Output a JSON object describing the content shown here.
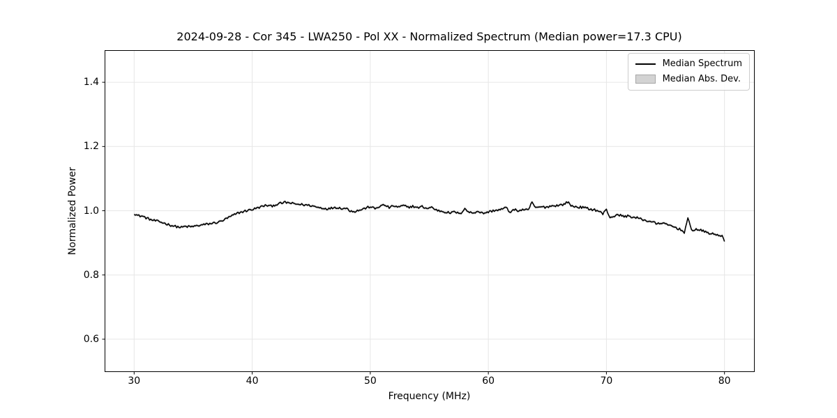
{
  "figure": {
    "title": "2024-09-28 - Cor 345 - LWA250 - Pol XX - Normalized Spectrum (Median power=17.3 CPU)",
    "xlabel": "Frequency (MHz)",
    "ylabel": "Normalized Power"
  },
  "legend": {
    "items": [
      {
        "label": "Median Spectrum",
        "type": "line",
        "color": "#000000"
      },
      {
        "label": "Median Abs. Dev.",
        "type": "patch",
        "fill": "#d3d3d3",
        "edge": "#a6a6a6"
      }
    ]
  },
  "colors": {
    "background": "#ffffff",
    "grid": "#e6e6e6",
    "spine": "#000000",
    "line": "#000000",
    "band_fill": "#d3d3d3"
  },
  "chart_data": {
    "type": "line",
    "title": "2024-09-28 - Cor 345 - LWA250 - Pol XX - Normalized Spectrum (Median power=17.3 CPU)",
    "xlabel": "Frequency (MHz)",
    "ylabel": "Normalized Power",
    "xlim": [
      27.5,
      82.5
    ],
    "ylim": [
      0.5,
      1.5
    ],
    "xticks": [
      30,
      40,
      50,
      60,
      70,
      80
    ],
    "yticks": [
      0.6,
      0.8,
      1.0,
      1.2,
      1.4
    ],
    "xtick_labels": [
      "30",
      "40",
      "50",
      "60",
      "70",
      "80"
    ],
    "ytick_labels": [
      "0.6",
      "0.8",
      "1.0",
      "1.2",
      "1.4"
    ],
    "grid": true,
    "legend_position": "upper right",
    "legend": [
      "Median Spectrum",
      "Median Abs. Dev."
    ],
    "noise_amplitude": 0.0035,
    "sample_step_mhz": 0.1,
    "series": [
      {
        "name": "Median Spectrum",
        "color": "#000000",
        "x": [
          30.0,
          30.3,
          30.7,
          31.0,
          31.5,
          32.0,
          32.5,
          33.0,
          33.5,
          34.0,
          34.3,
          34.8,
          35.3,
          35.8,
          36.3,
          36.8,
          37.2,
          37.6,
          38.0,
          38.4,
          38.8,
          39.2,
          39.6,
          40.0,
          40.4,
          40.8,
          41.2,
          41.6,
          42.0,
          42.4,
          42.8,
          43.2,
          43.6,
          44.0,
          44.5,
          45.0,
          45.5,
          46.0,
          46.5,
          47.0,
          47.5,
          48.0,
          48.3,
          48.7,
          49.2,
          49.6,
          50.0,
          50.4,
          50.8,
          51.2,
          51.6,
          52.0,
          52.4,
          52.8,
          53.2,
          53.6,
          54.0,
          54.4,
          54.8,
          55.2,
          55.6,
          56.0,
          56.4,
          56.8,
          57.2,
          57.6,
          58.0,
          58.3,
          58.7,
          59.1,
          59.5,
          60.0,
          60.5,
          61.0,
          61.5,
          61.8,
          62.2,
          62.6,
          63.0,
          63.4,
          63.7,
          64.0,
          64.4,
          64.8,
          65.2,
          65.6,
          66.0,
          66.4,
          66.7,
          67.0,
          67.4,
          67.8,
          68.2,
          68.6,
          69.0,
          69.4,
          69.7,
          70.0,
          70.3,
          70.7,
          71.1,
          71.5,
          71.9,
          72.3,
          72.7,
          73.1,
          73.5,
          73.9,
          74.3,
          74.7,
          75.1,
          75.5,
          75.9,
          76.3,
          76.6,
          76.9,
          77.2,
          77.6,
          78.0,
          78.4,
          78.8,
          79.2,
          79.6,
          79.85,
          80.0
        ],
        "y": [
          0.992,
          0.985,
          0.983,
          0.978,
          0.971,
          0.967,
          0.962,
          0.956,
          0.951,
          0.948,
          0.951,
          0.95,
          0.953,
          0.956,
          0.959,
          0.962,
          0.965,
          0.971,
          0.979,
          0.986,
          0.993,
          0.997,
          1.001,
          1.004,
          1.008,
          1.013,
          1.017,
          1.014,
          1.019,
          1.023,
          1.026,
          1.024,
          1.021,
          1.02,
          1.018,
          1.016,
          1.011,
          1.008,
          1.006,
          1.011,
          1.008,
          1.007,
          1.0,
          0.998,
          1.003,
          1.008,
          1.013,
          1.006,
          1.014,
          1.018,
          1.01,
          1.015,
          1.011,
          1.016,
          1.011,
          1.014,
          1.009,
          1.013,
          1.007,
          1.011,
          1.002,
          0.999,
          0.996,
          0.993,
          0.997,
          0.989,
          1.008,
          0.996,
          0.993,
          0.999,
          0.992,
          0.996,
          1.001,
          1.003,
          1.01,
          0.996,
          1.003,
          1.0,
          1.004,
          1.001,
          1.028,
          1.008,
          1.012,
          1.011,
          1.014,
          1.016,
          1.017,
          1.02,
          1.028,
          1.016,
          1.012,
          1.011,
          1.009,
          1.005,
          1.003,
          0.998,
          0.99,
          1.004,
          0.979,
          0.984,
          0.987,
          0.982,
          0.984,
          0.979,
          0.977,
          0.972,
          0.968,
          0.966,
          0.958,
          0.963,
          0.956,
          0.953,
          0.947,
          0.941,
          0.933,
          0.976,
          0.94,
          0.942,
          0.939,
          0.934,
          0.929,
          0.926,
          0.924,
          0.92,
          0.903
        ]
      },
      {
        "name": "Median Abs. Dev.",
        "type": "band",
        "mad": 0.004,
        "fill": "#d3d3d3"
      }
    ]
  }
}
